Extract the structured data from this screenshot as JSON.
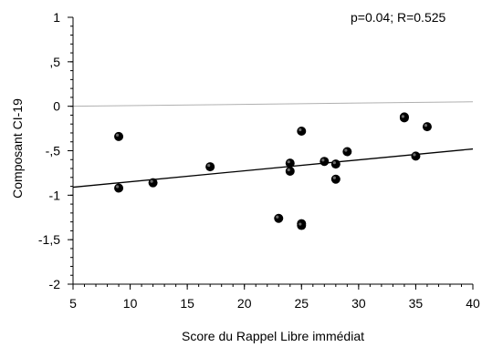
{
  "chart_data": {
    "type": "scatter",
    "annotation": "p=0.04; R=0.525",
    "xlabel": "Score du Rappel Libre immédiat",
    "ylabel": "Composant CI-19",
    "xlim": [
      5,
      40
    ],
    "ylim": [
      -2,
      1
    ],
    "x_ticks": [
      5,
      10,
      15,
      20,
      25,
      30,
      35,
      40
    ],
    "x_tick_labels": [
      "5",
      "10",
      "15",
      "20",
      "25",
      "30",
      "35",
      "40"
    ],
    "y_ticks": [
      1,
      0.5,
      0,
      -0.5,
      -1,
      -1.5,
      -2
    ],
    "y_tick_labels": [
      "1",
      ",5",
      "0",
      "-,5",
      "-1",
      "-1,5",
      "-2"
    ],
    "points": [
      {
        "x": 9,
        "y": -0.34
      },
      {
        "x": 9,
        "y": -0.92
      },
      {
        "x": 12,
        "y": -0.86
      },
      {
        "x": 17,
        "y": -0.68
      },
      {
        "x": 23,
        "y": -1.26
      },
      {
        "x": 24,
        "y": -0.64
      },
      {
        "x": 24,
        "y": -0.73
      },
      {
        "x": 25,
        "y": -0.28
      },
      {
        "x": 25,
        "y": -1.32
      },
      {
        "x": 25,
        "y": -1.34
      },
      {
        "x": 27,
        "y": -0.62
      },
      {
        "x": 28,
        "y": -0.65
      },
      {
        "x": 28,
        "y": -0.82
      },
      {
        "x": 29,
        "y": -0.51
      },
      {
        "x": 34,
        "y": -0.12
      },
      {
        "x": 34,
        "y": -0.13
      },
      {
        "x": 35,
        "y": -0.56
      },
      {
        "x": 36,
        "y": -0.23
      }
    ],
    "fit_line": {
      "x": [
        5,
        40
      ],
      "y": [
        -0.91,
        -0.48
      ]
    },
    "reference_line": {
      "x": [
        5,
        40
      ],
      "y": [
        0.0,
        0.05
      ]
    },
    "colors": {
      "points": "#000000",
      "fit_line": "#000000",
      "reference_line": "#b0b0b0"
    }
  }
}
